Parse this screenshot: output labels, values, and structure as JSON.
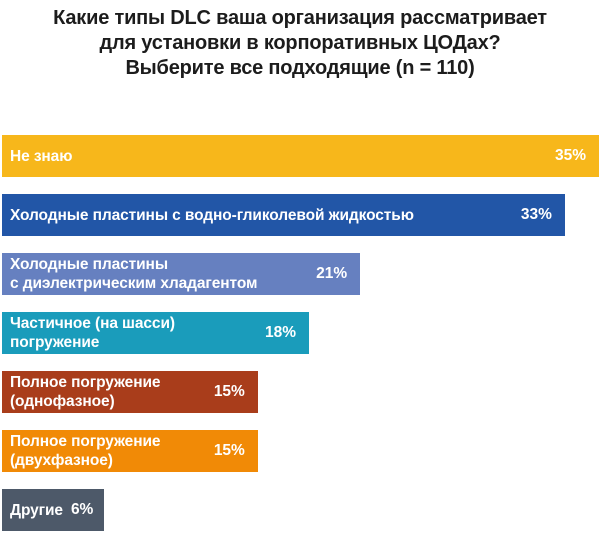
{
  "title": {
    "display": "Какие типы DLC ваша организация рассматривает\nдля установки в корпоративных ЦОДах?\nВыберите все подходящие (n = 110)"
  },
  "chart_data": {
    "type": "bar",
    "orientation": "horizontal",
    "title": "Какие типы DLC ваша организация рассматривает для установки в корпоративных ЦОДах? Выберите все подходящие (n = 110)",
    "sample_size": 110,
    "unit": "%",
    "xlim": [
      0,
      35
    ],
    "axes_visible": false,
    "grid": false,
    "legend": false,
    "categories": [
      "Не знаю",
      "Холодные пластины с водно-гликолевой жидкостью",
      "Холодные пластины с диэлектрическим хладагентом",
      "Частичное (на шасси) погружение",
      "Полное погружение (однофазное)",
      "Полное погружение (двухфазное)",
      "Другие"
    ],
    "label_lines": [
      [
        "Не знаю"
      ],
      [
        "Холодные пластины с водно-гликолевой жидкостью"
      ],
      [
        "Холодные пластины",
        "с диэлектрическим хладагентом"
      ],
      [
        "Частичное (на шасси)",
        "погружение"
      ],
      [
        "Полное погружение",
        "(однофазное)"
      ],
      [
        "Полное погружение",
        "(двухфазное)"
      ],
      [
        "Другие"
      ]
    ],
    "values": [
      35,
      33,
      21,
      18,
      15,
      15,
      6
    ],
    "value_labels": [
      "35%",
      "33%",
      "21%",
      "18%",
      "15%",
      "15%",
      "6%"
    ],
    "bar_colors": [
      "#F7B71B",
      "#2256A7",
      "#6680C0",
      "#1A9CBB",
      "#A93D1B",
      "#F18A06",
      "#4D5969"
    ],
    "bar_text_color": "#FFFFFF",
    "title_color": "#1C1C1C"
  }
}
